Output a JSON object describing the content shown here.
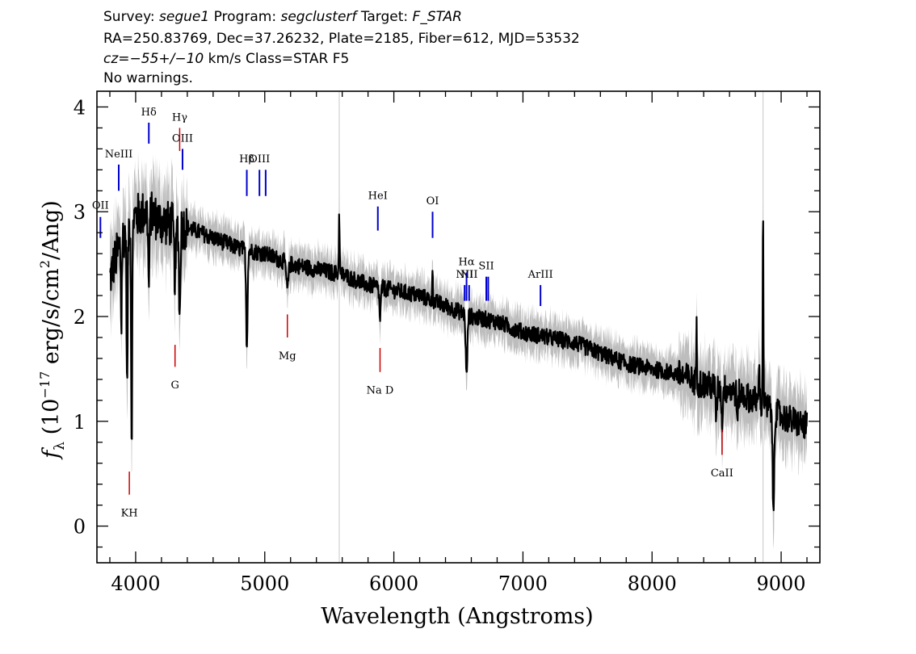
{
  "header": {
    "survey_label": "Survey:",
    "survey": "segue1",
    "program_label": "Program:",
    "program": "segclusterf",
    "target_label": "Target:",
    "target": "F_STAR",
    "line2": "RA=250.83769, Dec=37.26232, Plate=2185, Fiber=612, MJD=53532",
    "cz": "cz=−55+/−10",
    "line3_rest": " km/s Class=STAR F5",
    "line4": "No warnings."
  },
  "chart_data": {
    "type": "line",
    "xlabel": "Wavelength (Angstroms)",
    "ylabel": "f_λ (10^-17 erg/s/cm^2/Ang)",
    "xlim": [
      3700,
      9300
    ],
    "ylim": [
      -0.35,
      4.15
    ],
    "xticks": [
      4000,
      5000,
      6000,
      7000,
      8000,
      9000
    ],
    "yticks": [
      0,
      1,
      2,
      3,
      4
    ],
    "colors": {
      "spectrum": "#000000",
      "noise": "#bdbdbd",
      "emission": "#0000cc",
      "absorption": "#cc0000"
    },
    "sky_lines": [
      5577,
      8860
    ],
    "continuum": {
      "x": [
        3800,
        3830,
        3900,
        3980,
        4100,
        4200,
        4400,
        4600,
        4800,
        5000,
        5200,
        5400,
        5600,
        5800,
        6000,
        6200,
        6400,
        6600,
        6800,
        7000,
        7200,
        7400,
        7600,
        7800,
        8000,
        8200,
        8400,
        8600,
        8800,
        9000,
        9200
      ],
      "y": [
        2.35,
        2.5,
        2.75,
        2.95,
        3.0,
        2.9,
        2.85,
        2.75,
        2.65,
        2.6,
        2.5,
        2.45,
        2.4,
        2.3,
        2.25,
        2.2,
        2.1,
        2.0,
        1.95,
        1.85,
        1.8,
        1.75,
        1.65,
        1.55,
        1.5,
        1.45,
        1.35,
        1.3,
        1.2,
        1.05,
        0.95
      ]
    },
    "absorption_features": [
      {
        "x": 3934,
        "depth": 1.6,
        "width": 6
      },
      {
        "x": 3969,
        "depth": 2.1,
        "width": 6
      },
      {
        "x": 3889,
        "depth": 0.8,
        "width": 5
      },
      {
        "x": 4102,
        "depth": 0.7,
        "width": 7
      },
      {
        "x": 4305,
        "depth": 0.5,
        "width": 10
      },
      {
        "x": 4341,
        "depth": 0.9,
        "width": 7
      },
      {
        "x": 4861,
        "depth": 0.9,
        "width": 8
      },
      {
        "x": 5175,
        "depth": 0.25,
        "width": 12
      },
      {
        "x": 5893,
        "depth": 0.3,
        "width": 8
      },
      {
        "x": 6563,
        "depth": 0.6,
        "width": 9
      },
      {
        "x": 8498,
        "depth": 0.3,
        "width": 6
      },
      {
        "x": 8542,
        "depth": 0.35,
        "width": 6
      },
      {
        "x": 8662,
        "depth": 0.3,
        "width": 6
      },
      {
        "x": 8940,
        "depth": 1.0,
        "width": 8
      }
    ],
    "spikes": [
      {
        "x": 5577,
        "height": 0.6
      },
      {
        "x": 6300,
        "height": 0.3
      },
      {
        "x": 8345,
        "height": 0.5
      },
      {
        "x": 8830,
        "height": 0.5
      },
      {
        "x": 8860,
        "height": 1.9
      }
    ],
    "emission_lines": [
      {
        "label": "OII",
        "x": 3727,
        "y_top": 2.95,
        "y_bottom": 2.75,
        "label_y": 3.03
      },
      {
        "label": "NeIII",
        "x": 3869,
        "y_top": 3.45,
        "y_bottom": 3.2,
        "label_y": 3.52
      },
      {
        "label": "Hδ",
        "x": 4102,
        "y_top": 3.85,
        "y_bottom": 3.65,
        "label_y": 3.92
      },
      {
        "label": "OIII",
        "x": 4363,
        "y_top": 3.6,
        "y_bottom": 3.4,
        "label_y": 3.67
      },
      {
        "label": "Hβ",
        "x": 4861,
        "y_top": 3.4,
        "y_bottom": 3.15,
        "label_y": 3.47
      },
      {
        "label": "OIII",
        "x": 4959,
        "y_top": 3.4,
        "y_bottom": 3.15,
        "label_y": 3.47
      },
      {
        "label": "",
        "x": 5007,
        "y_top": 3.4,
        "y_bottom": 3.15,
        "label_y": 3.47
      },
      {
        "label": "HeI",
        "x": 5876,
        "y_top": 3.05,
        "y_bottom": 2.82,
        "label_y": 3.12
      },
      {
        "label": "OI",
        "x": 6300,
        "y_top": 3.0,
        "y_bottom": 2.75,
        "label_y": 3.07
      },
      {
        "label": "NII",
        "x": 6548,
        "y_top": 2.3,
        "y_bottom": 2.15,
        "label_y": 2.37
      },
      {
        "label": "Hα",
        "x": 6563,
        "y_top": 2.42,
        "y_bottom": 2.15,
        "label_y": 2.49
      },
      {
        "label": "NII",
        "x": 6583,
        "y_top": 2.3,
        "y_bottom": 2.15,
        "label_y": 2.37
      },
      {
        "label": "SII",
        "x": 6716,
        "y_top": 2.38,
        "y_bottom": 2.15,
        "label_y": 2.45
      },
      {
        "label": "",
        "x": 6731,
        "y_top": 2.38,
        "y_bottom": 2.15,
        "label_y": 2.45
      },
      {
        "label": "ArIII",
        "x": 7136,
        "y_top": 2.3,
        "y_bottom": 2.1,
        "label_y": 2.37
      }
    ],
    "absorption_lines": [
      {
        "label": "Hγ",
        "x": 4341,
        "y_top": 3.8,
        "y_bottom": 3.58,
        "label_y": 3.87,
        "label_pos": "above"
      },
      {
        "label": "KH",
        "x": 3951,
        "y_top": 0.52,
        "y_bottom": 0.3,
        "label_y": 0.17,
        "label_pos": "below"
      },
      {
        "label": "G",
        "x": 4305,
        "y_top": 1.73,
        "y_bottom": 1.52,
        "label_y": 1.39,
        "label_pos": "below"
      },
      {
        "label": "Mg",
        "x": 5175,
        "y_top": 2.02,
        "y_bottom": 1.8,
        "label_y": 1.67,
        "label_pos": "below"
      },
      {
        "label": "Na D",
        "x": 5893,
        "y_top": 1.7,
        "y_bottom": 1.47,
        "label_y": 1.34,
        "label_pos": "below"
      },
      {
        "label": "CaII",
        "x": 8542,
        "y_top": 0.92,
        "y_bottom": 0.68,
        "label_y": 0.55,
        "label_pos": "below"
      }
    ]
  }
}
